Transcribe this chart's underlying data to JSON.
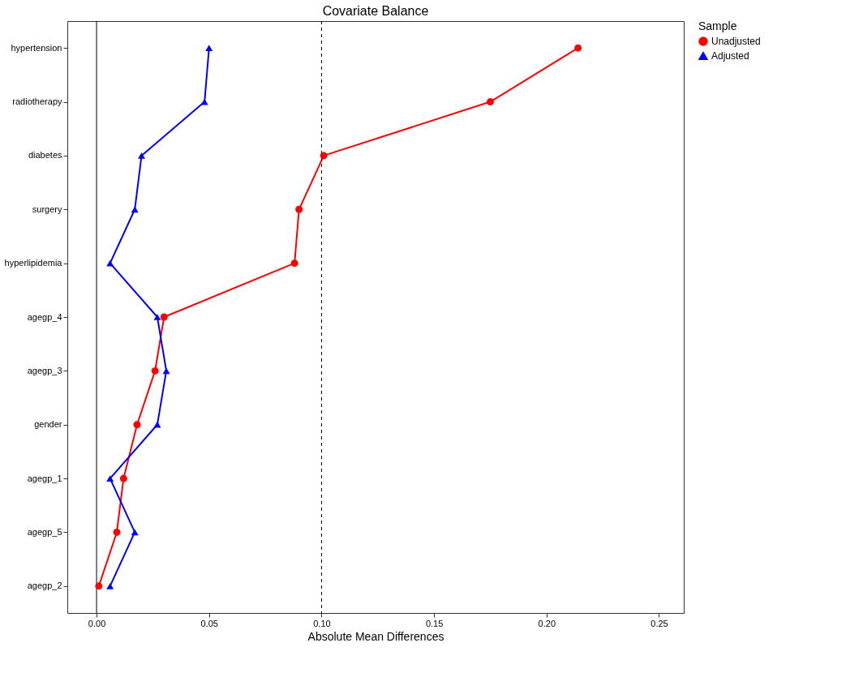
{
  "chart_data": {
    "type": "line",
    "orientation": "horizontal",
    "title": "Covariate Balance",
    "xlabel": "Absolute Mean Differences",
    "legend_title": "Sample",
    "categories": [
      "hypertension",
      "radiotherapy",
      "diabetes",
      "surgery",
      "hyperlipidemia",
      "agegp_4",
      "agegp_3",
      "gender",
      "agegp_1",
      "agegp_5",
      "agegp_2"
    ],
    "series": [
      {
        "name": "Unadjusted",
        "color": "#ff0000",
        "marker": "circle",
        "values": [
          0.214,
          0.175,
          0.101,
          0.09,
          0.088,
          0.03,
          0.026,
          0.018,
          0.012,
          0.009,
          0.001
        ]
      },
      {
        "name": "Adjusted",
        "color": "#0000ff",
        "marker": "triangle",
        "values": [
          0.05,
          0.048,
          0.02,
          0.017,
          0.006,
          0.027,
          0.031,
          0.027,
          0.006,
          0.017,
          0.006
        ]
      }
    ],
    "xlim": [
      -0.013,
      0.261
    ],
    "xticks": [
      {
        "value": 0,
        "label": "0.00"
      },
      0.05,
      {
        "value": 0.1,
        "label": "0.10"
      },
      0.15,
      {
        "value": 0.2,
        "label": "0.20"
      },
      0.25
    ],
    "ref_lines": [
      {
        "axis": "x",
        "value": 0,
        "line_style": "solid",
        "color": "#000000"
      },
      {
        "axis": "x",
        "value": 0.1,
        "line_style": "dashed",
        "color": "#000000"
      }
    ],
    "grid": false,
    "legend": "right"
  }
}
